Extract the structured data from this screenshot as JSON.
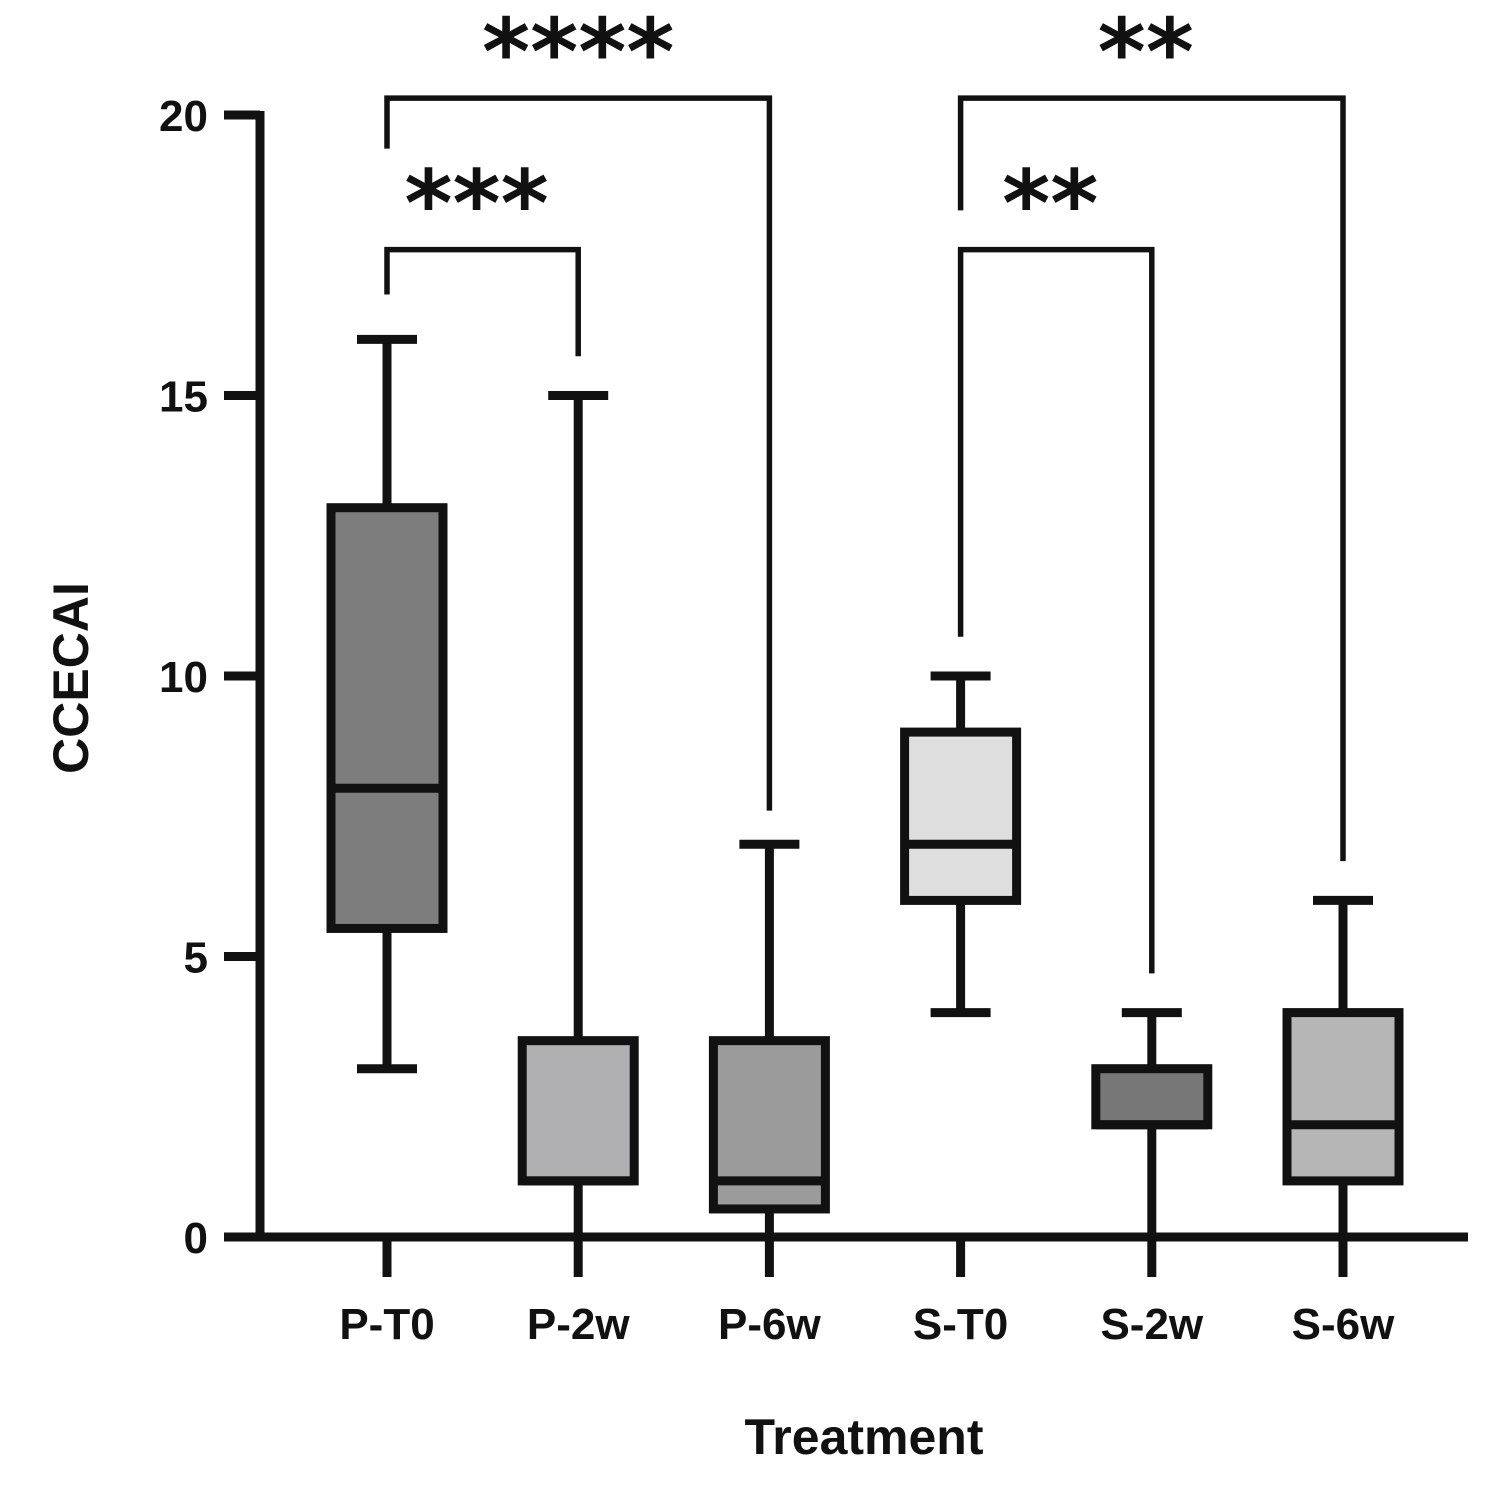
{
  "chart_data": {
    "type": "box",
    "title": "",
    "xlabel": "Treatment",
    "ylabel": "CCECAI",
    "ylim": [
      0,
      20
    ],
    "yticks": [
      0,
      5,
      10,
      15,
      20
    ],
    "categories": [
      "P-T0",
      "P-2w",
      "P-6w",
      "S-T0",
      "S-2w",
      "S-6w"
    ],
    "boxes": [
      {
        "label": "P-T0",
        "min": 3,
        "q1": 5.5,
        "median": 8,
        "q3": 13,
        "max": 16,
        "color": "#7d7d7d"
      },
      {
        "label": "P-2w",
        "min": 0,
        "q1": 1,
        "median": 1,
        "q3": 3.5,
        "max": 15,
        "color": "#b0b0b2"
      },
      {
        "label": "P-6w",
        "min": 0,
        "q1": 0.5,
        "median": 1,
        "q3": 3.5,
        "max": 7,
        "color": "#9b9b9b"
      },
      {
        "label": "S-T0",
        "min": 4,
        "q1": 6,
        "median": 7,
        "q3": 9,
        "max": 10,
        "color": "#dedede"
      },
      {
        "label": "S-2w",
        "min": 0,
        "q1": 2,
        "median": 2,
        "q3": 3,
        "max": 4,
        "color": "#777777"
      },
      {
        "label": "S-6w",
        "min": 0,
        "q1": 1,
        "median": 2,
        "q3": 4,
        "max": 6,
        "color": "#b6b6b6"
      }
    ],
    "significance": [
      {
        "from": "P-T0",
        "to": "P-6w",
        "label": "****",
        "bracket_y": 20.3,
        "from_end": 19.4,
        "to_end": 7.6
      },
      {
        "from": "P-T0",
        "to": "P-2w",
        "label": "***",
        "bracket_y": 17.6,
        "from_end": 16.8,
        "to_end": 15.7
      },
      {
        "from": "S-T0",
        "to": "S-6w",
        "label": "**",
        "bracket_y": 20.3,
        "from_end": 18.3,
        "to_end": 6.7
      },
      {
        "from": "S-T0",
        "to": "S-2w",
        "label": "**",
        "bracket_y": 17.6,
        "from_end": 10.7,
        "to_end": 4.7
      }
    ]
  }
}
